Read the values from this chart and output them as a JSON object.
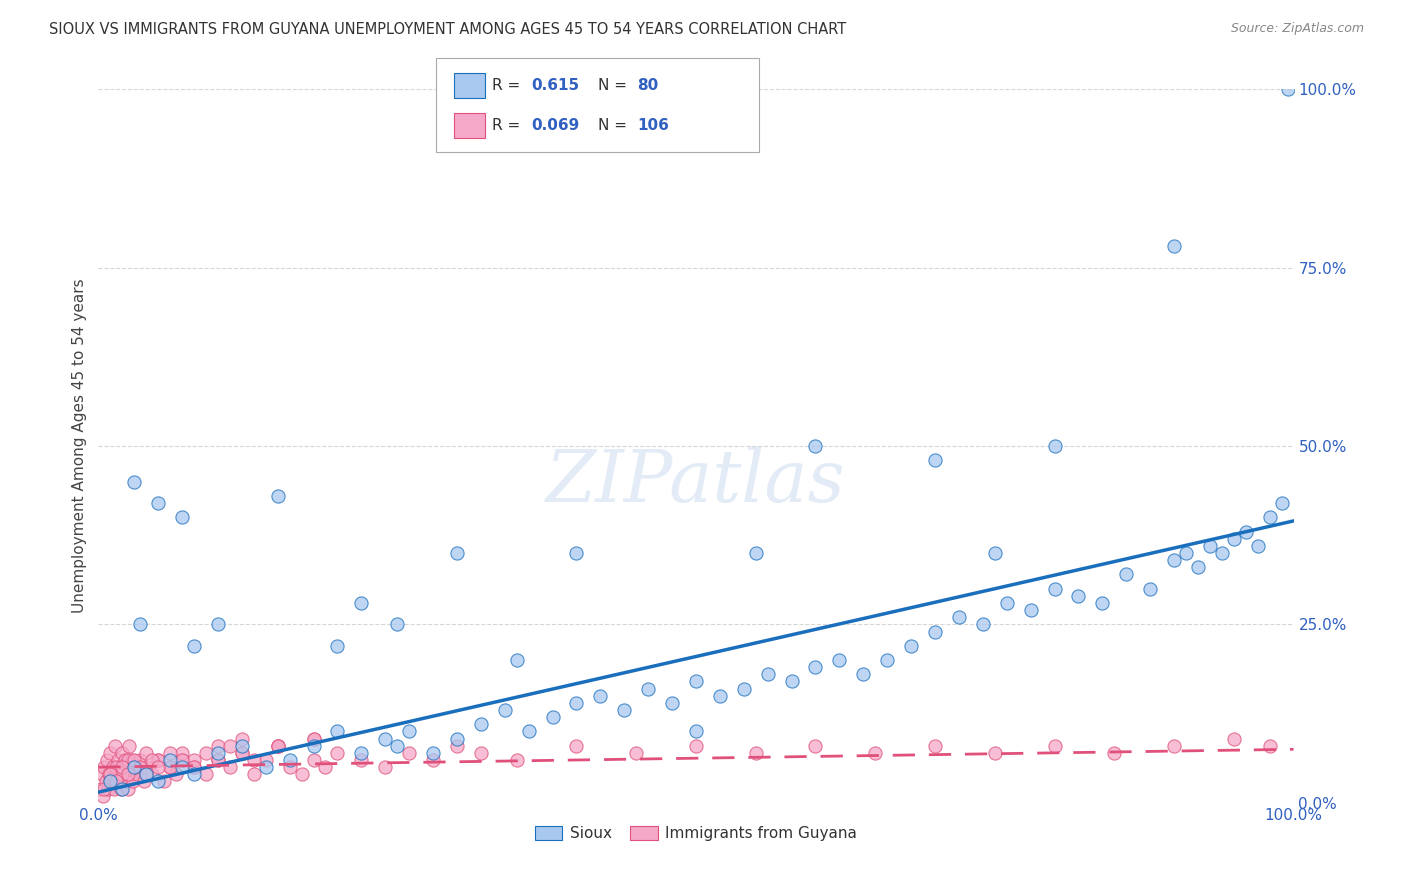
{
  "title": "SIOUX VS IMMIGRANTS FROM GUYANA UNEMPLOYMENT AMONG AGES 45 TO 54 YEARS CORRELATION CHART",
  "source": "Source: ZipAtlas.com",
  "ylabel": "Unemployment Among Ages 45 to 54 years",
  "ytick_labels": [
    "0.0%",
    "25.0%",
    "50.0%",
    "75.0%",
    "100.0%"
  ],
  "ytick_values": [
    0,
    25,
    50,
    75,
    100
  ],
  "sioux_R": 0.615,
  "sioux_N": 80,
  "guyana_R": 0.069,
  "guyana_N": 106,
  "sioux_color": "#a8c8f0",
  "sioux_line_color": "#1a6fbd",
  "guyana_color": "#f5a8c8",
  "guyana_line_color": "#e0507a",
  "background_color": "#ffffff",
  "grid_color": "#cccccc",
  "title_color": "#333333",
  "tick_color": "#3060c0",
  "sioux_x": [
    1.0,
    2.0,
    3.0,
    4.0,
    5.0,
    6.0,
    7.0,
    8.0,
    10.0,
    12.0,
    14.0,
    16.0,
    18.0,
    20.0,
    22.0,
    24.0,
    25.0,
    26.0,
    28.0,
    30.0,
    32.0,
    34.0,
    36.0,
    38.0,
    40.0,
    42.0,
    44.0,
    46.0,
    48.0,
    50.0,
    52.0,
    54.0,
    56.0,
    58.0,
    60.0,
    62.0,
    64.0,
    66.0,
    68.0,
    70.0,
    72.0,
    74.0,
    76.0,
    78.0,
    80.0,
    82.0,
    84.0,
    86.0,
    88.0,
    90.0,
    91.0,
    92.0,
    93.0,
    94.0,
    95.0,
    96.0,
    97.0,
    98.0,
    99.0,
    99.5,
    3.0,
    5.0,
    8.0,
    10.0,
    15.0,
    20.0,
    25.0,
    30.0,
    40.0,
    50.0,
    60.0,
    70.0,
    80.0,
    90.0,
    3.5,
    7.0,
    22.0,
    35.0,
    55.0,
    75.0
  ],
  "sioux_y": [
    3.0,
    2.0,
    5.0,
    4.0,
    3.0,
    6.0,
    5.0,
    4.0,
    7.0,
    8.0,
    5.0,
    6.0,
    8.0,
    10.0,
    7.0,
    9.0,
    8.0,
    10.0,
    7.0,
    9.0,
    11.0,
    13.0,
    10.0,
    12.0,
    14.0,
    15.0,
    13.0,
    16.0,
    14.0,
    17.0,
    15.0,
    16.0,
    18.0,
    17.0,
    19.0,
    20.0,
    18.0,
    20.0,
    22.0,
    24.0,
    26.0,
    25.0,
    28.0,
    27.0,
    30.0,
    29.0,
    28.0,
    32.0,
    30.0,
    34.0,
    35.0,
    33.0,
    36.0,
    35.0,
    37.0,
    38.0,
    36.0,
    40.0,
    42.0,
    100.0,
    45.0,
    42.0,
    22.0,
    25.0,
    43.0,
    22.0,
    25.0,
    35.0,
    35.0,
    10.0,
    50.0,
    48.0,
    50.0,
    78.0,
    25.0,
    40.0,
    28.0,
    20.0,
    35.0,
    35.0
  ],
  "guyana_x": [
    0.2,
    0.3,
    0.4,
    0.5,
    0.6,
    0.7,
    0.8,
    0.9,
    1.0,
    1.1,
    1.2,
    1.3,
    1.4,
    1.5,
    1.6,
    1.7,
    1.8,
    1.9,
    2.0,
    2.1,
    2.2,
    2.3,
    2.4,
    2.5,
    2.6,
    2.7,
    2.8,
    2.9,
    3.0,
    3.2,
    3.5,
    3.8,
    4.0,
    4.5,
    5.0,
    5.5,
    6.0,
    6.5,
    7.0,
    8.0,
    9.0,
    10.0,
    11.0,
    12.0,
    13.0,
    14.0,
    15.0,
    16.0,
    17.0,
    18.0,
    19.0,
    20.0,
    22.0,
    24.0,
    26.0,
    28.0,
    30.0,
    32.0,
    35.0,
    40.0,
    45.0,
    50.0,
    55.0,
    60.0,
    65.0,
    70.0,
    75.0,
    80.0,
    85.0,
    90.0,
    95.0,
    98.0,
    1.0,
    1.5,
    2.0,
    2.5,
    3.0,
    4.0,
    5.0,
    6.0,
    7.0,
    8.0,
    10.0,
    12.0,
    15.0,
    18.0,
    0.5,
    1.0,
    1.5,
    2.0,
    2.5,
    3.0,
    3.5,
    4.0,
    4.5,
    5.0,
    6.0,
    7.0,
    8.0,
    9.0,
    10.0,
    11.0,
    12.0,
    13.0,
    15.0,
    18.0
  ],
  "guyana_y": [
    2.0,
    4.0,
    1.0,
    5.0,
    3.0,
    6.0,
    2.0,
    4.0,
    7.0,
    3.0,
    5.0,
    2.0,
    8.0,
    4.0,
    6.0,
    3.0,
    5.0,
    2.0,
    7.0,
    4.0,
    6.0,
    3.0,
    5.0,
    2.0,
    8.0,
    4.0,
    6.0,
    3.0,
    5.0,
    4.0,
    6.0,
    3.0,
    5.0,
    4.0,
    6.0,
    3.0,
    5.0,
    4.0,
    6.0,
    5.0,
    4.0,
    6.0,
    5.0,
    7.0,
    4.0,
    6.0,
    8.0,
    5.0,
    4.0,
    6.0,
    5.0,
    7.0,
    6.0,
    5.0,
    7.0,
    6.0,
    8.0,
    7.0,
    6.0,
    8.0,
    7.0,
    8.0,
    7.0,
    8.0,
    7.0,
    8.0,
    7.0,
    8.0,
    7.0,
    8.0,
    9.0,
    8.0,
    3.0,
    5.0,
    4.0,
    6.0,
    5.0,
    7.0,
    6.0,
    5.0,
    7.0,
    6.0,
    8.0,
    9.0,
    8.0,
    9.0,
    2.0,
    4.0,
    3.0,
    5.0,
    4.0,
    6.0,
    5.0,
    4.0,
    6.0,
    5.0,
    7.0,
    6.0,
    5.0,
    7.0,
    6.0,
    8.0,
    7.0,
    6.0,
    8.0,
    9.0
  ]
}
